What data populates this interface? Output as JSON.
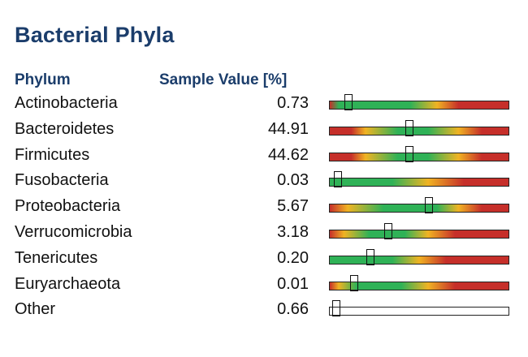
{
  "chart_data": {
    "type": "table",
    "title": "Bacterial Phyla",
    "columns": [
      "Phylum",
      "Sample Value [%]"
    ],
    "rows": [
      {
        "name": "Actinobacteria",
        "value": "0.73",
        "marker": 0.11,
        "stops": [
          [
            "#c62f2a",
            0
          ],
          [
            "#2fb257",
            0.05
          ],
          [
            "#2fb257",
            0.45
          ],
          [
            "#f0b323",
            0.6
          ],
          [
            "#c62f2a",
            0.72
          ],
          [
            "#c62f2a",
            1
          ]
        ]
      },
      {
        "name": "Bacteroidetes",
        "value": "44.91",
        "marker": 0.45,
        "stops": [
          [
            "#c62f2a",
            0
          ],
          [
            "#c62f2a",
            0.12
          ],
          [
            "#f0b323",
            0.2
          ],
          [
            "#2fb257",
            0.38
          ],
          [
            "#2fb257",
            0.55
          ],
          [
            "#f0b323",
            0.72
          ],
          [
            "#c62f2a",
            0.85
          ],
          [
            "#c62f2a",
            1
          ]
        ]
      },
      {
        "name": "Firmicutes",
        "value": "44.62",
        "marker": 0.45,
        "stops": [
          [
            "#c62f2a",
            0
          ],
          [
            "#c62f2a",
            0.12
          ],
          [
            "#f0b323",
            0.2
          ],
          [
            "#2fb257",
            0.38
          ],
          [
            "#2fb257",
            0.55
          ],
          [
            "#f0b323",
            0.72
          ],
          [
            "#c62f2a",
            0.85
          ],
          [
            "#c62f2a",
            1
          ]
        ]
      },
      {
        "name": "Fusobacteria",
        "value": "0.03",
        "marker": 0.05,
        "stops": [
          [
            "#2fb257",
            0
          ],
          [
            "#2fb257",
            0.35
          ],
          [
            "#f0b323",
            0.55
          ],
          [
            "#c62f2a",
            0.75
          ],
          [
            "#c62f2a",
            1
          ]
        ]
      },
      {
        "name": "Proteobacteria",
        "value": "5.67",
        "marker": 0.56,
        "stops": [
          [
            "#c62f2a",
            0
          ],
          [
            "#f0b323",
            0.1
          ],
          [
            "#2fb257",
            0.3
          ],
          [
            "#2fb257",
            0.6
          ],
          [
            "#f0b323",
            0.72
          ],
          [
            "#c62f2a",
            0.85
          ],
          [
            "#c62f2a",
            1
          ]
        ]
      },
      {
        "name": "Verrucomicrobia",
        "value": "3.18",
        "marker": 0.33,
        "stops": [
          [
            "#c62f2a",
            0
          ],
          [
            "#f0b323",
            0.08
          ],
          [
            "#2fb257",
            0.22
          ],
          [
            "#2fb257",
            0.42
          ],
          [
            "#f0b323",
            0.55
          ],
          [
            "#c62f2a",
            0.7
          ],
          [
            "#c62f2a",
            1
          ]
        ]
      },
      {
        "name": "Tenericutes",
        "value": "0.20",
        "marker": 0.23,
        "stops": [
          [
            "#2fb257",
            0
          ],
          [
            "#2fb257",
            0.35
          ],
          [
            "#f0b323",
            0.5
          ],
          [
            "#c62f2a",
            0.65
          ],
          [
            "#c62f2a",
            1
          ]
        ]
      },
      {
        "name": "Euryarchaeota",
        "value": "0.01",
        "marker": 0.14,
        "stops": [
          [
            "#c62f2a",
            0
          ],
          [
            "#f0b323",
            0.05
          ],
          [
            "#2fb257",
            0.15
          ],
          [
            "#2fb257",
            0.4
          ],
          [
            "#f0b323",
            0.55
          ],
          [
            "#c62f2a",
            0.7
          ],
          [
            "#c62f2a",
            1
          ]
        ]
      },
      {
        "name": "Other",
        "value": "0.66",
        "marker": 0.04,
        "stops": [
          [
            "#ffffff",
            0
          ],
          [
            "#ffffff",
            1
          ]
        ]
      }
    ]
  }
}
